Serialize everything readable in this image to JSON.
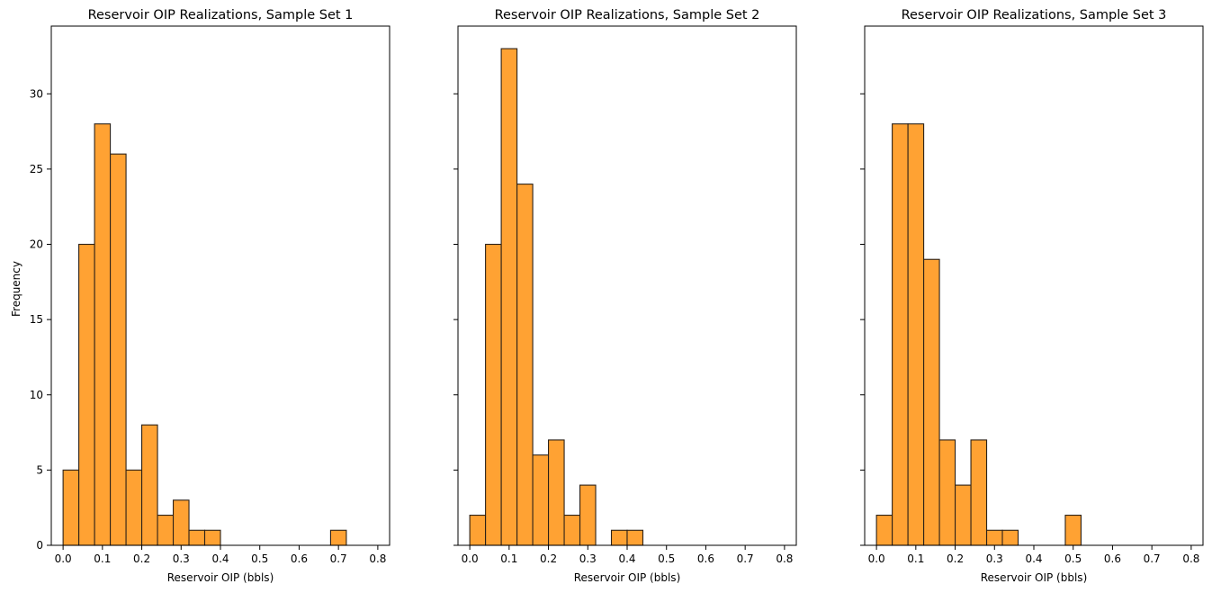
{
  "colors": {
    "bar_fill": "#ffa233",
    "bar_edge": "#2b2118",
    "axis": "#000000"
  },
  "shared_ylabel": "Frequency",
  "chart_data": [
    {
      "type": "bar",
      "title": "Reservoir OIP Realizations, Sample Set 1",
      "xlabel": "Reservoir OIP (bbls)",
      "ylabel": "Frequency",
      "xlim": [
        -0.03,
        0.83
      ],
      "ylim": [
        0,
        34.5
      ],
      "xticks": [
        "0.0",
        "0.1",
        "0.2",
        "0.3",
        "0.4",
        "0.5",
        "0.6",
        "0.7",
        "0.8"
      ],
      "yticks": [
        "0",
        "5",
        "10",
        "15",
        "20",
        "25",
        "30"
      ],
      "bin_edges": [
        0.0,
        0.04,
        0.08,
        0.12,
        0.16,
        0.2,
        0.24,
        0.28,
        0.32,
        0.36,
        0.4,
        0.44,
        0.48,
        0.52,
        0.56,
        0.6,
        0.64,
        0.68,
        0.72,
        0.76,
        0.8
      ],
      "values": [
        5,
        20,
        28,
        26,
        5,
        8,
        2,
        3,
        1,
        1,
        0,
        0,
        0,
        0,
        0,
        0,
        0,
        1,
        0,
        0
      ]
    },
    {
      "type": "bar",
      "title": "Reservoir OIP Realizations, Sample Set 2",
      "xlabel": "Reservoir OIP (bbls)",
      "ylabel": "",
      "xlim": [
        -0.03,
        0.83
      ],
      "ylim": [
        0,
        34.5
      ],
      "xticks": [
        "0.0",
        "0.1",
        "0.2",
        "0.3",
        "0.4",
        "0.5",
        "0.6",
        "0.7",
        "0.8"
      ],
      "yticks": [
        "0",
        "5",
        "10",
        "15",
        "20",
        "25",
        "30"
      ],
      "bin_edges": [
        0.0,
        0.04,
        0.08,
        0.12,
        0.16,
        0.2,
        0.24,
        0.28,
        0.32,
        0.36,
        0.4,
        0.44,
        0.48,
        0.52,
        0.56,
        0.6,
        0.64,
        0.68,
        0.72,
        0.76,
        0.8
      ],
      "values": [
        2,
        20,
        33,
        24,
        6,
        7,
        2,
        4,
        0,
        1,
        1,
        0,
        0,
        0,
        0,
        0,
        0,
        0,
        0,
        0
      ]
    },
    {
      "type": "bar",
      "title": "Reservoir OIP Realizations, Sample Set 3",
      "xlabel": "Reservoir OIP (bbls)",
      "ylabel": "",
      "xlim": [
        -0.03,
        0.83
      ],
      "ylim": [
        0,
        34.5
      ],
      "xticks": [
        "0.0",
        "0.1",
        "0.2",
        "0.3",
        "0.4",
        "0.5",
        "0.6",
        "0.7",
        "0.8"
      ],
      "yticks": [
        "0",
        "5",
        "10",
        "15",
        "20",
        "25",
        "30"
      ],
      "bin_edges": [
        0.0,
        0.04,
        0.08,
        0.12,
        0.16,
        0.2,
        0.24,
        0.28,
        0.32,
        0.36,
        0.4,
        0.44,
        0.48,
        0.52,
        0.56,
        0.6,
        0.64,
        0.68,
        0.72,
        0.76,
        0.8
      ],
      "values": [
        2,
        28,
        28,
        19,
        7,
        4,
        7,
        1,
        1,
        0,
        0,
        0,
        2,
        0,
        0,
        0,
        0,
        0,
        0,
        0
      ]
    }
  ]
}
